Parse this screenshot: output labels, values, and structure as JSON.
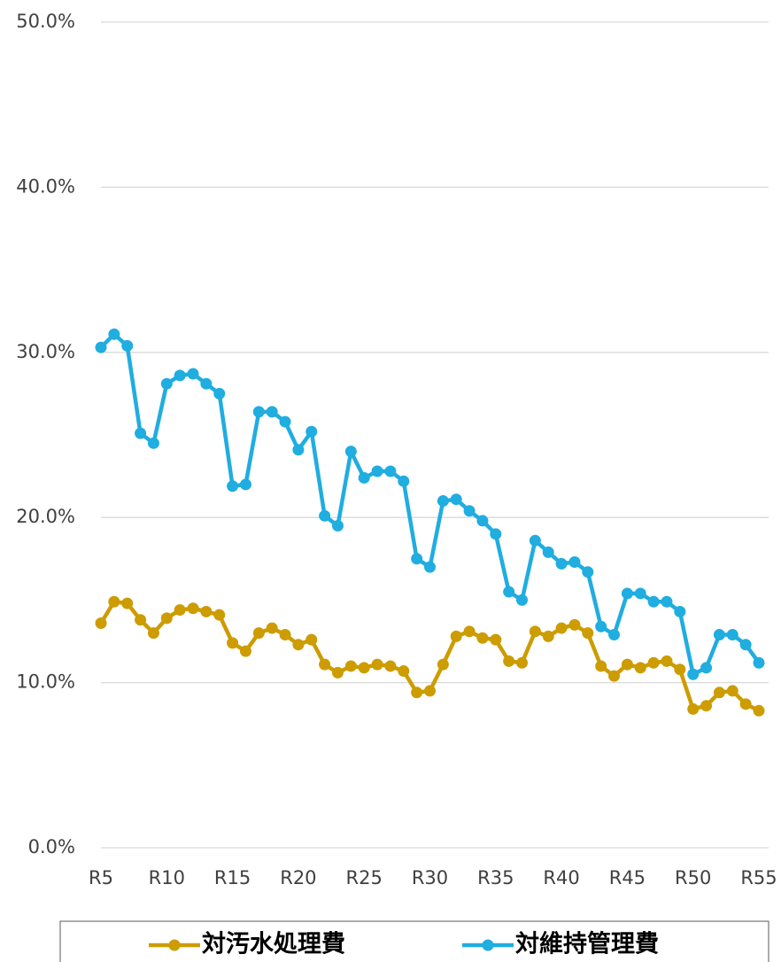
{
  "chart_data": {
    "type": "line",
    "categories": [
      "R5",
      null,
      null,
      null,
      null,
      "R10",
      null,
      null,
      null,
      null,
      "R15",
      null,
      null,
      null,
      null,
      "R20",
      null,
      null,
      null,
      null,
      "R25",
      null,
      null,
      null,
      null,
      "R30",
      null,
      null,
      null,
      null,
      "R35",
      null,
      null,
      null,
      null,
      "R40",
      null,
      null,
      null,
      null,
      "R45",
      null,
      null,
      null,
      null,
      "R50",
      null,
      null,
      null,
      null,
      "R55"
    ],
    "series": [
      {
        "name": "対汚水処理費",
        "color": "#cc9c00",
        "values": [
          13.6,
          14.9,
          14.8,
          13.8,
          13.0,
          13.9,
          14.4,
          14.5,
          14.3,
          14.1,
          12.4,
          11.9,
          13.0,
          13.3,
          12.9,
          12.3,
          12.6,
          11.1,
          10.6,
          11.0,
          10.9,
          11.1,
          11.0,
          10.7,
          9.4,
          9.5,
          11.1,
          12.8,
          13.1,
          12.7,
          12.6,
          11.3,
          11.2,
          13.1,
          12.8,
          13.3,
          13.5,
          13.0,
          11.0,
          10.4,
          11.1,
          10.9,
          11.2,
          11.3,
          10.8,
          8.4,
          8.6,
          9.4,
          9.5,
          8.7,
          8.3
        ]
      },
      {
        "name": "対維持管理費",
        "color": "#20ade0",
        "values": [
          30.3,
          31.1,
          30.4,
          25.1,
          24.5,
          28.1,
          28.6,
          28.7,
          28.1,
          27.5,
          21.9,
          22.0,
          26.4,
          26.4,
          25.8,
          24.1,
          25.2,
          20.1,
          19.5,
          24.0,
          22.4,
          22.8,
          22.8,
          22.2,
          17.5,
          17.0,
          21.0,
          21.1,
          20.4,
          19.8,
          19.0,
          15.5,
          15.0,
          18.6,
          17.9,
          17.2,
          17.3,
          16.7,
          13.4,
          12.9,
          15.4,
          15.4,
          14.9,
          14.9,
          14.3,
          10.5,
          10.9,
          12.9,
          12.9,
          12.3,
          11.2
        ]
      }
    ],
    "ylim": [
      0,
      50
    ],
    "yticks": [
      {
        "value": 0,
        "label": "0.0%"
      },
      {
        "value": 10,
        "label": "10.0%"
      },
      {
        "value": 20,
        "label": "20.0%"
      },
      {
        "value": 30,
        "label": "30.0%"
      },
      {
        "value": 40,
        "label": "40.0%"
      },
      {
        "value": 50,
        "label": "50.0%"
      }
    ],
    "grid": true,
    "legend": "bottom"
  }
}
